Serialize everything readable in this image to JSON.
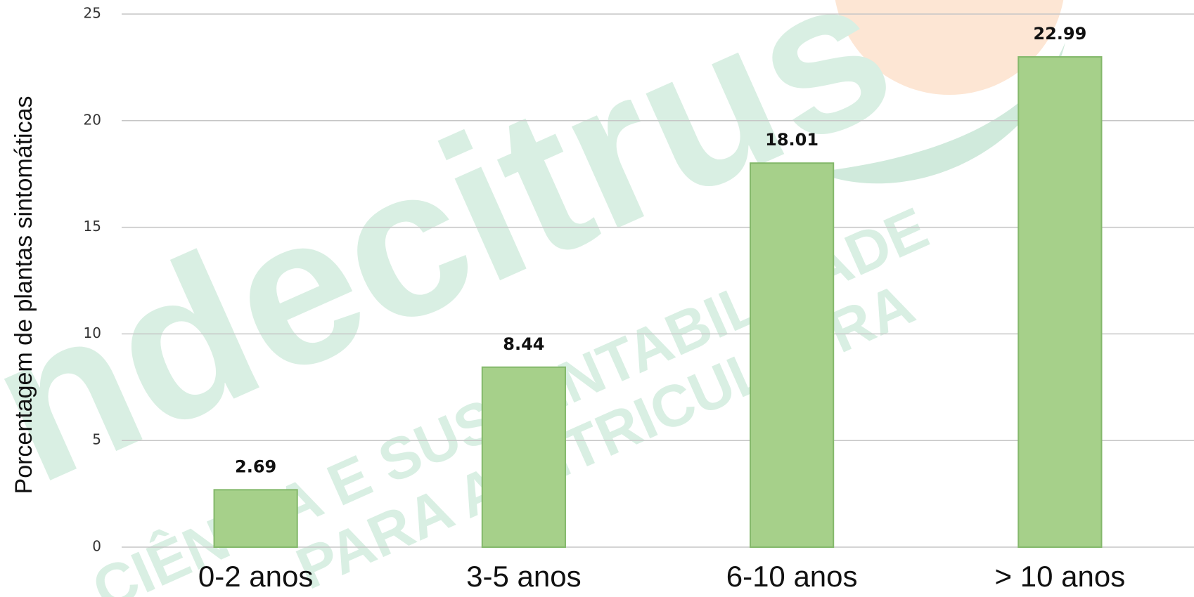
{
  "chart_data": {
    "type": "bar",
    "y_axis_label": "Porcentagem de plantas sintomáticas",
    "categories": [
      "0-2 anos",
      "3-5 anos",
      "6-10 anos",
      "> 10 anos"
    ],
    "values": [
      2.69,
      8.44,
      18.01,
      22.99
    ],
    "color": "#a6d08a",
    "ylim": [
      0,
      25
    ],
    "yticks": [
      0,
      5,
      10,
      15,
      20,
      25
    ],
    "grid": true,
    "watermark_logo": "ndecitrus",
    "watermark_lines": [
      "CIÊNCIA E SUSTENTABILIDADE",
      "PARA A CITRICULTURA"
    ]
  }
}
